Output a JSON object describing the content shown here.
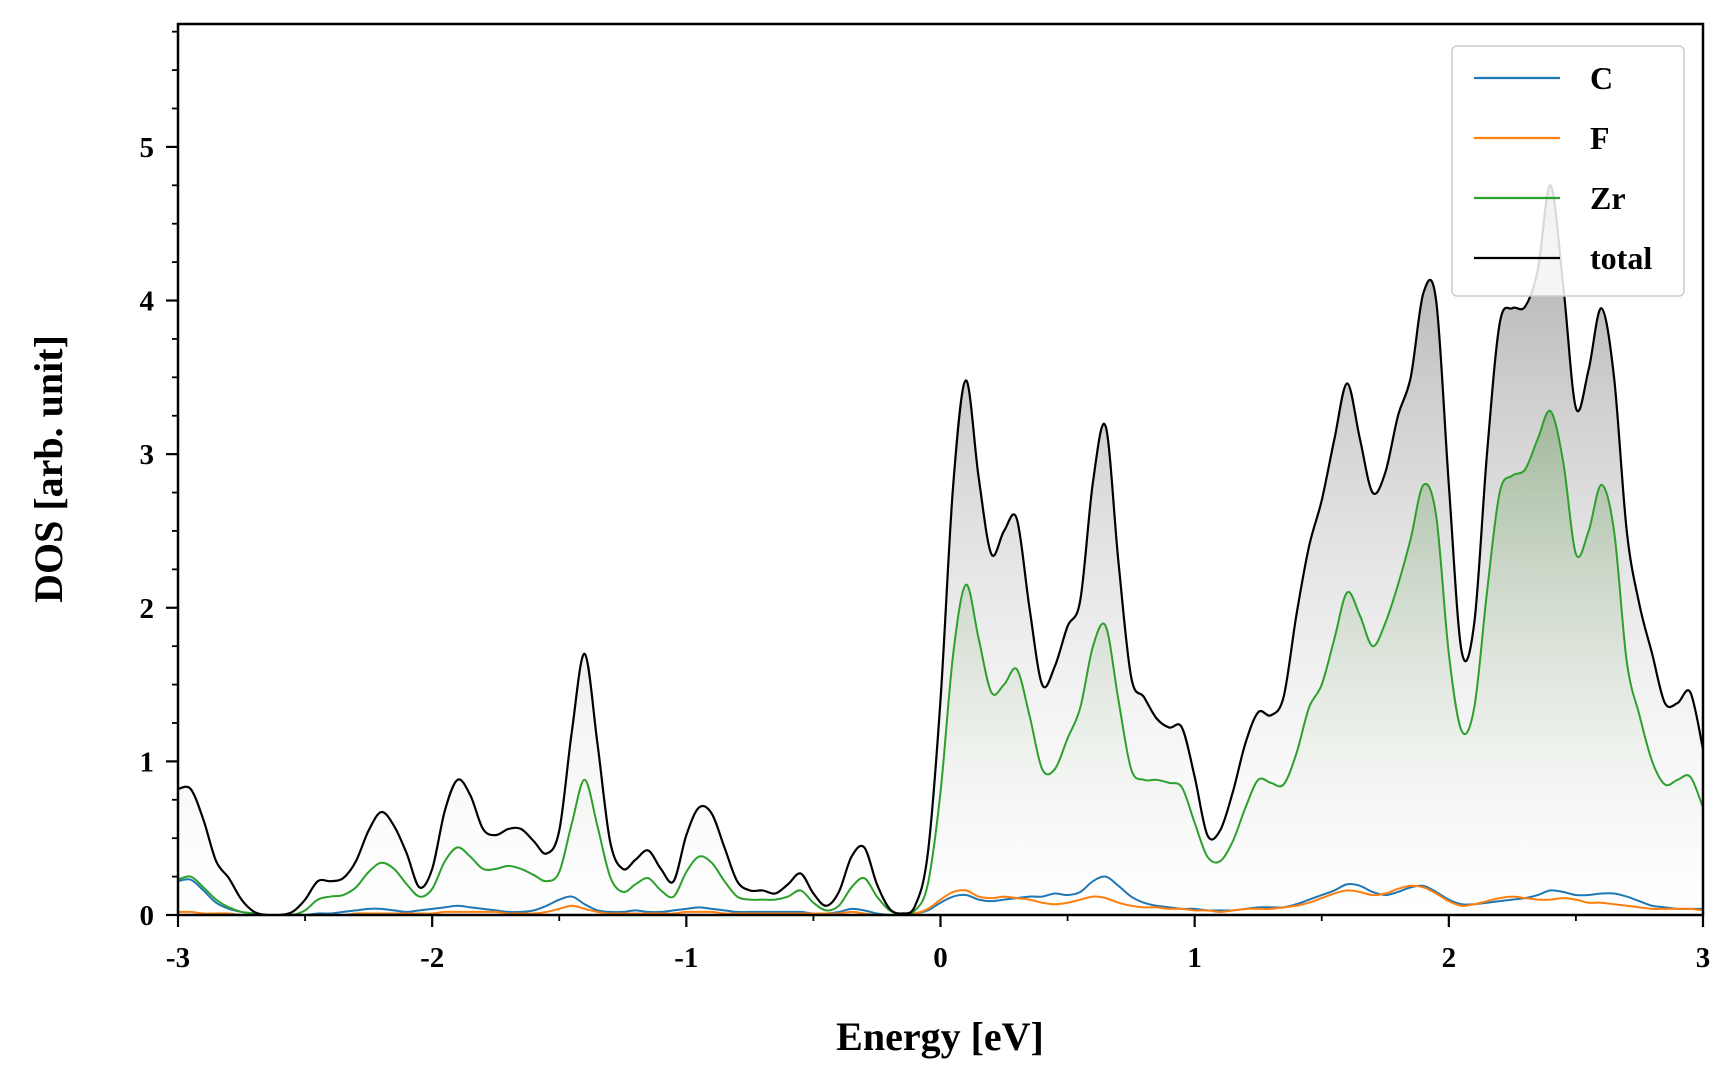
{
  "chart_data": {
    "type": "line",
    "xlabel": "Energy [eV]",
    "ylabel": "DOS [arb. unit]",
    "xlim": [
      -3,
      3
    ],
    "ylim": [
      0,
      5.8
    ],
    "xticks": [
      -3,
      -2,
      -1,
      0,
      1,
      2,
      3
    ],
    "xtick_labels": [
      "-3",
      "-2",
      "-1",
      "0",
      "1",
      "2",
      "3"
    ],
    "yticks": [
      0,
      1,
      2,
      3,
      4,
      5
    ],
    "ytick_labels": [
      "0",
      "1",
      "2",
      "3",
      "4",
      "5"
    ],
    "grid": false,
    "legend_position": "top-right",
    "x": [
      -3.0,
      -2.95,
      -2.9,
      -2.85,
      -2.8,
      -2.75,
      -2.7,
      -2.65,
      -2.6,
      -2.55,
      -2.5,
      -2.45,
      -2.4,
      -2.35,
      -2.3,
      -2.25,
      -2.2,
      -2.15,
      -2.1,
      -2.05,
      -2.0,
      -1.95,
      -1.9,
      -1.85,
      -1.8,
      -1.75,
      -1.7,
      -1.65,
      -1.6,
      -1.55,
      -1.5,
      -1.45,
      -1.4,
      -1.35,
      -1.3,
      -1.25,
      -1.2,
      -1.15,
      -1.1,
      -1.05,
      -1.0,
      -0.95,
      -0.9,
      -0.85,
      -0.8,
      -0.75,
      -0.7,
      -0.65,
      -0.6,
      -0.55,
      -0.5,
      -0.45,
      -0.4,
      -0.35,
      -0.3,
      -0.25,
      -0.2,
      -0.15,
      -0.1,
      -0.05,
      0.0,
      0.05,
      0.1,
      0.15,
      0.2,
      0.25,
      0.3,
      0.35,
      0.4,
      0.45,
      0.5,
      0.55,
      0.6,
      0.65,
      0.7,
      0.75,
      0.8,
      0.85,
      0.9,
      0.95,
      1.0,
      1.05,
      1.1,
      1.15,
      1.2,
      1.25,
      1.3,
      1.35,
      1.4,
      1.45,
      1.5,
      1.55,
      1.6,
      1.65,
      1.7,
      1.75,
      1.8,
      1.85,
      1.9,
      1.95,
      2.0,
      2.05,
      2.1,
      2.15,
      2.2,
      2.25,
      2.3,
      2.35,
      2.4,
      2.45,
      2.5,
      2.55,
      2.6,
      2.65,
      2.7,
      2.75,
      2.8,
      2.85,
      2.9,
      2.95,
      3.0
    ],
    "series": [
      {
        "name": "C",
        "color": "#1f77b4",
        "values": [
          0.22,
          0.23,
          0.16,
          0.08,
          0.04,
          0.02,
          0.01,
          0.0,
          0.0,
          0.0,
          0.0,
          0.01,
          0.01,
          0.02,
          0.03,
          0.04,
          0.04,
          0.03,
          0.02,
          0.03,
          0.04,
          0.05,
          0.06,
          0.05,
          0.04,
          0.03,
          0.02,
          0.02,
          0.03,
          0.06,
          0.1,
          0.12,
          0.07,
          0.03,
          0.02,
          0.02,
          0.03,
          0.02,
          0.02,
          0.03,
          0.04,
          0.05,
          0.04,
          0.03,
          0.02,
          0.02,
          0.02,
          0.02,
          0.02,
          0.02,
          0.01,
          0.01,
          0.02,
          0.04,
          0.03,
          0.01,
          0.0,
          0.0,
          0.01,
          0.03,
          0.08,
          0.12,
          0.13,
          0.1,
          0.09,
          0.1,
          0.11,
          0.12,
          0.12,
          0.14,
          0.13,
          0.15,
          0.22,
          0.25,
          0.19,
          0.12,
          0.08,
          0.06,
          0.05,
          0.04,
          0.04,
          0.03,
          0.03,
          0.03,
          0.04,
          0.05,
          0.05,
          0.05,
          0.07,
          0.1,
          0.13,
          0.16,
          0.2,
          0.19,
          0.15,
          0.13,
          0.15,
          0.18,
          0.19,
          0.15,
          0.1,
          0.07,
          0.07,
          0.08,
          0.09,
          0.1,
          0.11,
          0.13,
          0.16,
          0.15,
          0.13,
          0.13,
          0.14,
          0.14,
          0.12,
          0.09,
          0.06,
          0.05,
          0.04,
          0.04,
          0.04
        ]
      },
      {
        "name": "F",
        "color": "#ff7f0e",
        "values": [
          0.02,
          0.02,
          0.01,
          0.01,
          0.01,
          0.0,
          0.0,
          0.0,
          0.0,
          0.0,
          0.0,
          0.0,
          0.0,
          0.0,
          0.01,
          0.01,
          0.01,
          0.01,
          0.01,
          0.01,
          0.01,
          0.02,
          0.02,
          0.02,
          0.02,
          0.02,
          0.01,
          0.01,
          0.01,
          0.02,
          0.04,
          0.06,
          0.04,
          0.02,
          0.01,
          0.01,
          0.01,
          0.01,
          0.01,
          0.01,
          0.02,
          0.02,
          0.02,
          0.01,
          0.01,
          0.01,
          0.01,
          0.01,
          0.01,
          0.01,
          0.01,
          0.01,
          0.01,
          0.02,
          0.01,
          0.0,
          0.0,
          0.0,
          0.01,
          0.04,
          0.1,
          0.15,
          0.16,
          0.12,
          0.11,
          0.12,
          0.11,
          0.1,
          0.08,
          0.07,
          0.08,
          0.1,
          0.12,
          0.11,
          0.08,
          0.06,
          0.05,
          0.05,
          0.04,
          0.04,
          0.03,
          0.03,
          0.02,
          0.03,
          0.04,
          0.04,
          0.04,
          0.05,
          0.06,
          0.08,
          0.11,
          0.14,
          0.16,
          0.15,
          0.13,
          0.14,
          0.17,
          0.19,
          0.18,
          0.14,
          0.09,
          0.06,
          0.07,
          0.09,
          0.11,
          0.12,
          0.11,
          0.1,
          0.1,
          0.11,
          0.1,
          0.08,
          0.08,
          0.07,
          0.06,
          0.05,
          0.04,
          0.04,
          0.04,
          0.04,
          0.03
        ]
      },
      {
        "name": "Zr",
        "color": "#2ca02c",
        "values": [
          0.23,
          0.25,
          0.18,
          0.1,
          0.05,
          0.02,
          0.01,
          0.0,
          0.0,
          0.0,
          0.03,
          0.1,
          0.12,
          0.13,
          0.18,
          0.28,
          0.34,
          0.3,
          0.2,
          0.12,
          0.17,
          0.35,
          0.44,
          0.38,
          0.3,
          0.3,
          0.32,
          0.3,
          0.26,
          0.22,
          0.28,
          0.6,
          0.88,
          0.58,
          0.25,
          0.15,
          0.2,
          0.24,
          0.16,
          0.12,
          0.28,
          0.38,
          0.34,
          0.22,
          0.12,
          0.1,
          0.1,
          0.1,
          0.12,
          0.16,
          0.08,
          0.03,
          0.06,
          0.18,
          0.24,
          0.12,
          0.03,
          0.01,
          0.03,
          0.2,
          0.8,
          1.7,
          2.15,
          1.8,
          1.45,
          1.5,
          1.6,
          1.3,
          0.95,
          0.95,
          1.15,
          1.35,
          1.75,
          1.88,
          1.4,
          0.95,
          0.88,
          0.88,
          0.86,
          0.83,
          0.6,
          0.38,
          0.35,
          0.48,
          0.7,
          0.88,
          0.86,
          0.85,
          1.05,
          1.35,
          1.5,
          1.8,
          2.1,
          1.95,
          1.75,
          1.9,
          2.15,
          2.45,
          2.8,
          2.6,
          1.7,
          1.2,
          1.35,
          2.1,
          2.75,
          2.86,
          2.9,
          3.1,
          3.28,
          2.95,
          2.35,
          2.5,
          2.8,
          2.5,
          1.65,
          1.3,
          1.0,
          0.85,
          0.88,
          0.9,
          0.7
        ]
      },
      {
        "name": "total",
        "color": "#000000",
        "values": [
          0.82,
          0.82,
          0.62,
          0.35,
          0.24,
          0.1,
          0.02,
          0.0,
          0.0,
          0.02,
          0.1,
          0.22,
          0.22,
          0.24,
          0.35,
          0.55,
          0.67,
          0.58,
          0.4,
          0.18,
          0.3,
          0.68,
          0.88,
          0.78,
          0.56,
          0.52,
          0.56,
          0.56,
          0.48,
          0.4,
          0.55,
          1.2,
          1.7,
          1.12,
          0.48,
          0.3,
          0.36,
          0.42,
          0.3,
          0.22,
          0.52,
          0.7,
          0.66,
          0.44,
          0.22,
          0.16,
          0.16,
          0.14,
          0.2,
          0.27,
          0.14,
          0.06,
          0.15,
          0.38,
          0.44,
          0.2,
          0.04,
          0.01,
          0.06,
          0.4,
          1.4,
          2.8,
          3.48,
          2.85,
          2.35,
          2.5,
          2.58,
          2.0,
          1.5,
          1.62,
          1.88,
          2.05,
          2.82,
          3.18,
          2.3,
          1.55,
          1.42,
          1.28,
          1.22,
          1.22,
          0.9,
          0.52,
          0.55,
          0.8,
          1.12,
          1.32,
          1.3,
          1.42,
          1.95,
          2.4,
          2.7,
          3.1,
          3.46,
          3.1,
          2.75,
          2.88,
          3.25,
          3.5,
          4.05,
          4.0,
          2.8,
          1.72,
          1.9,
          3.0,
          3.85,
          3.95,
          3.96,
          4.2,
          4.75,
          4.1,
          3.3,
          3.55,
          3.95,
          3.5,
          2.5,
          2.02,
          1.7,
          1.38,
          1.38,
          1.45,
          1.08
        ]
      }
    ]
  }
}
